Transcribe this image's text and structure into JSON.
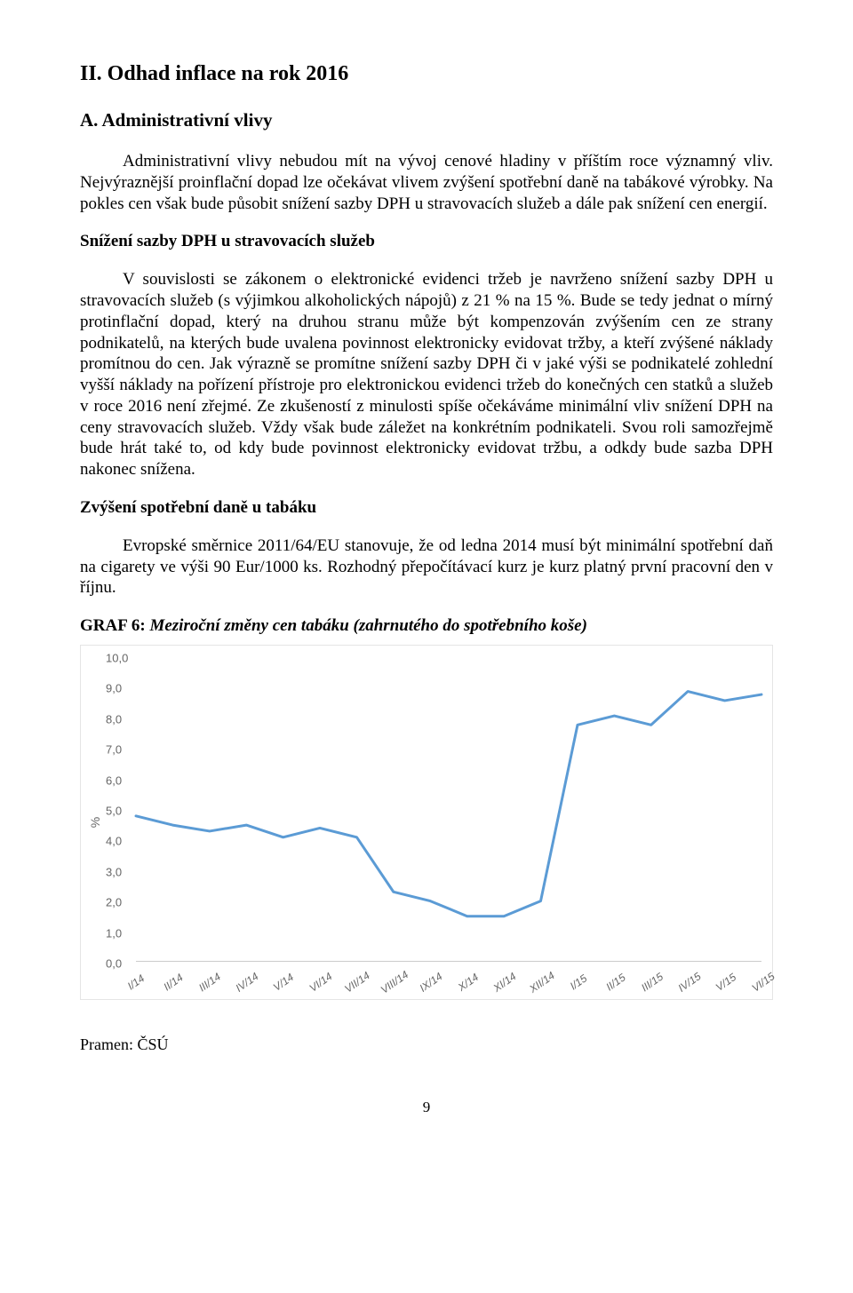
{
  "title": "II. Odhad inflace na rok 2016",
  "section_a": "A. Administrativní vlivy",
  "intro1": "Administrativní vlivy nebudou mít na vývoj cenové hladiny v příštím roce významný vliv. Nejvýraznější proinflační dopad lze očekávat vlivem zvýšení spotřební daně na tabákové výrobky. Na pokles cen však bude působit snížení sazby DPH u stravovacích služeb a dále pak snížení cen energií.",
  "heading1": "Snížení sazby DPH u stravovacích služeb",
  "para1": "V souvislosti se zákonem o elektronické evidenci tržeb je navrženo snížení sazby DPH u stravovacích služeb (s výjimkou alkoholických nápojů) z 21 % na 15 %. Bude se tedy jednat o mírný protinflační dopad, který na druhou stranu může být kompenzován zvýšením cen ze strany podnikatelů, na kterých bude uvalena povinnost elektronicky evidovat tržby, a kteří zvýšené náklady promítnou do cen. Jak výrazně se promítne snížení sazby DPH či v jaké výši se podnikatelé zohlední vyšší náklady na pořízení přístroje pro elektronickou evidenci tržeb do konečných cen statků a služeb v roce 2016 není zřejmé. Ze zkušeností z minulosti spíše očekáváme minimální vliv snížení DPH na ceny stravovacích služeb. Vždy však bude záležet na konkrétním podnikateli. Svou roli samozřejmě bude hrát také to, od kdy bude povinnost elektronicky evidovat tržbu, a odkdy bude sazba DPH nakonec snížena.",
  "heading2": "Zvýšení spotřební daně u tabáku",
  "para2": "Evropské směrnice 2011/64/EU stanovuje, že od ledna 2014 musí být minimální spotřební daň na cigarety ve výši 90 Eur/1000 ks. Rozhodný přepočítávací kurz je kurz platný první pracovní den v říjnu.",
  "fig_label_lead": "GRAF 6: ",
  "fig_label_rest": "Meziroční změny cen tabáku (zahrnutého do spotřebního koše)",
  "source": "Pramen: ČSÚ",
  "pagenum": "9",
  "chart": {
    "type": "line",
    "ylabel": "%",
    "ylim": [
      0.0,
      10.0
    ],
    "ytick_step": 1.0,
    "yticks": [
      "0,0",
      "1,0",
      "2,0",
      "3,0",
      "4,0",
      "5,0",
      "6,0",
      "7,0",
      "8,0",
      "9,0",
      "10,0"
    ],
    "x_categories": [
      "I/14",
      "II/14",
      "III/14",
      "IV/14",
      "V/14",
      "VI/14",
      "VII/14",
      "VIII/14",
      "IX/14",
      "X/14",
      "XI/14",
      "XII/14",
      "I/15",
      "II/15",
      "III/15",
      "IV/15",
      "V/15",
      "VI/15"
    ],
    "values": [
      4.8,
      4.5,
      4.3,
      4.5,
      4.1,
      4.4,
      4.1,
      2.3,
      2.0,
      1.5,
      1.5,
      2.0,
      7.8,
      8.1,
      7.8,
      8.9,
      8.6,
      8.8
    ],
    "line_color": "#5b9bd5",
    "line_width": 3,
    "background_color": "#ffffff",
    "grid_color": "#cccccc",
    "axis_color": "#cccccc",
    "tick_font_color": "#666666",
    "tick_fontsize": 13,
    "label_fontsize": 14
  }
}
